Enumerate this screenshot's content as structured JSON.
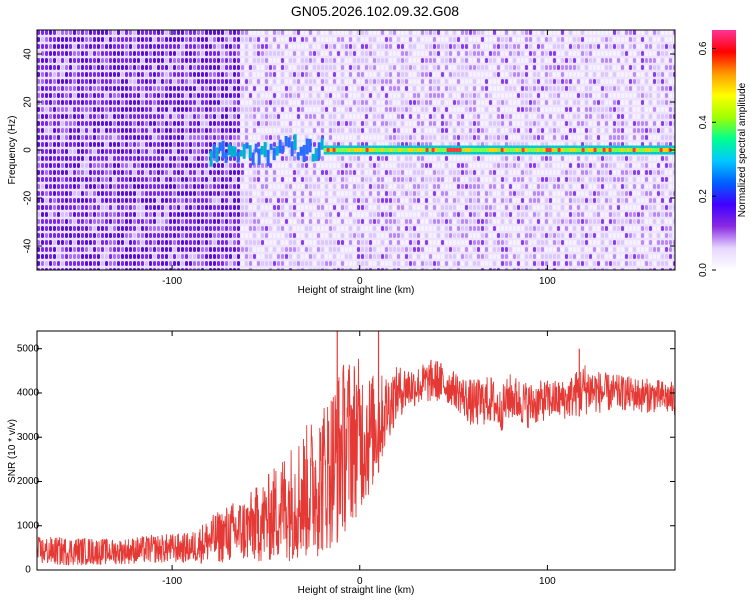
{
  "title": "GN05.2026.102.09.32.G08",
  "colors": {
    "snr_line": "#e53935",
    "spectrogram_background": "#f2e7ff",
    "spectrogram_noise": "#6b1be0",
    "spectrogram_signal": "#00c8c8",
    "colormap": [
      "#ffffff",
      "#e6d6ff",
      "#8a2be2",
      "#4000ff",
      "#0060ff",
      "#00c8ff",
      "#00ff90",
      "#a0ff00",
      "#ffff00",
      "#ff9900",
      "#ff0000",
      "#ff3399"
    ]
  },
  "chart_data": [
    {
      "type": "heatmap",
      "title": "GN05.2026.102.09.32.G08",
      "xlabel": "Height of straight line (km)",
      "ylabel": "Frequency (Hz)",
      "xlim": [
        -172,
        168
      ],
      "ylim": [
        -50,
        50
      ],
      "xticks": [
        -100,
        0,
        100
      ],
      "yticks": [
        -40,
        -20,
        0,
        20,
        40
      ],
      "colorbar": {
        "label": "Normalized spectral amplitude",
        "range": [
          0.0,
          0.65
        ],
        "ticks": [
          0.0,
          0.2,
          0.4,
          0.6
        ],
        "tick_labels": [
          "0.0",
          "0.2",
          "0.4",
          "0.6"
        ]
      },
      "signal_band": {
        "center_frequency_hz": 0,
        "starts_at_height_km": -80,
        "strong_from_height_km": -20,
        "peak_amplitude": 0.62
      },
      "noise_transition_height_km": -65
    },
    {
      "type": "line",
      "xlabel": "Height of straight line (km)",
      "ylabel": "SNR (10 * v/v)",
      "xlim": [
        -172,
        168
      ],
      "ylim": [
        0,
        5400
      ],
      "xticks": [
        -100,
        0,
        100
      ],
      "yticks": [
        0,
        1000,
        2000,
        3000,
        4000,
        5000
      ],
      "grid": false,
      "series": [
        {
          "x": [
            -172,
            -150,
            -130,
            -110,
            -90,
            -80,
            -70,
            -60,
            -50,
            -40,
            -30,
            -20,
            -15,
            -10,
            -5,
            0,
            5,
            10,
            15,
            20,
            25,
            30,
            40,
            50,
            60,
            70,
            75,
            80,
            90,
            100,
            110,
            120,
            130,
            140,
            150,
            160,
            168
          ],
          "values": [
            400,
            380,
            400,
            420,
            450,
            500,
            600,
            700,
            900,
            1100,
            1400,
            1800,
            2100,
            2400,
            2600,
            2800,
            3000,
            3400,
            3700,
            3900,
            4050,
            4150,
            4300,
            4150,
            3800,
            3750,
            3600,
            3900,
            3700,
            3850,
            3800,
            4000,
            3950,
            4000,
            3950,
            3900,
            3850
          ],
          "upper": [
            750,
            750,
            700,
            800,
            850,
            1200,
            1500,
            1700,
            2100,
            2700,
            3200,
            3800,
            4200,
            4700,
            4900,
            4800,
            4500,
            4400,
            4500,
            4600,
            4650,
            4600,
            4800,
            4500,
            4300,
            4400,
            4100,
            4450,
            4250,
            4300,
            4300,
            4700,
            4450,
            4400,
            4350,
            4300,
            4250
          ],
          "lower": [
            100,
            100,
            120,
            150,
            150,
            150,
            150,
            150,
            150,
            200,
            200,
            300,
            500,
            700,
            1000,
            1300,
            1600,
            2200,
            2900,
            3400,
            3600,
            3700,
            3800,
            3700,
            3200,
            3300,
            3100,
            3400,
            3200,
            3400,
            3400,
            3500,
            3550,
            3600,
            3550,
            3550,
            3450
          ]
        }
      ],
      "spikes": [
        {
          "x": -12,
          "y": 5400
        },
        {
          "x": 10,
          "y": 5400
        },
        {
          "x": 117,
          "y": 5000
        }
      ]
    }
  ]
}
